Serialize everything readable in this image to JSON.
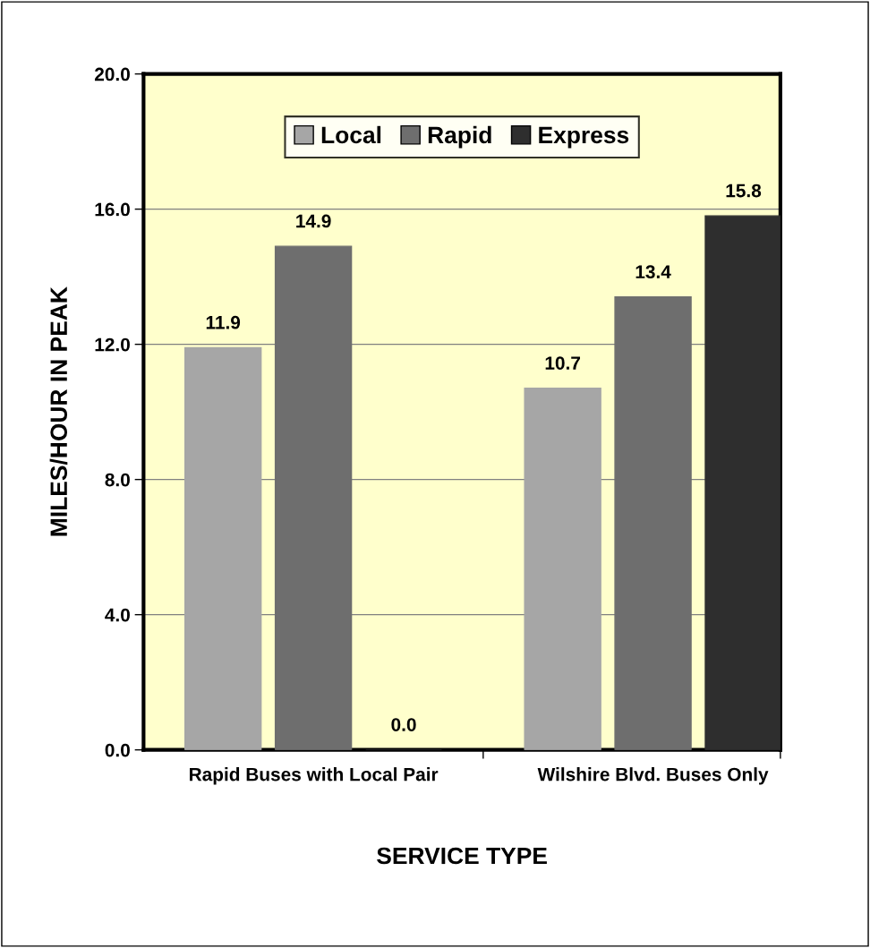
{
  "chart_data": {
    "type": "bar",
    "xlabel": "SERVICE TYPE",
    "ylabel": "MILES/HOUR IN PEAK",
    "categories": [
      "Rapid Buses with Local Pair",
      "Wilshire Blvd. Buses Only"
    ],
    "series": [
      {
        "name": "Local",
        "color": "#a6a6a6",
        "values": [
          11.9,
          10.7
        ],
        "value_labels": [
          "11.9",
          "10.7"
        ]
      },
      {
        "name": "Rapid",
        "color": "#6e6e6e",
        "values": [
          14.9,
          13.4
        ],
        "value_labels": [
          "14.9",
          "13.4"
        ]
      },
      {
        "name": "Express",
        "color": "#2e2e2e",
        "values": [
          0.0,
          15.8
        ],
        "value_labels": [
          "0.0",
          "15.8"
        ]
      }
    ],
    "ylim": [
      0,
      20
    ],
    "yticks": [
      {
        "value": 0,
        "label": "0.0"
      },
      {
        "value": 4,
        "label": "4.0"
      },
      {
        "value": 8,
        "label": "8.0"
      },
      {
        "value": 12,
        "label": "12.0"
      },
      {
        "value": 16,
        "label": "16.0"
      },
      {
        "value": 20,
        "label": "20.0"
      }
    ],
    "grid": "y",
    "legend": "top"
  }
}
